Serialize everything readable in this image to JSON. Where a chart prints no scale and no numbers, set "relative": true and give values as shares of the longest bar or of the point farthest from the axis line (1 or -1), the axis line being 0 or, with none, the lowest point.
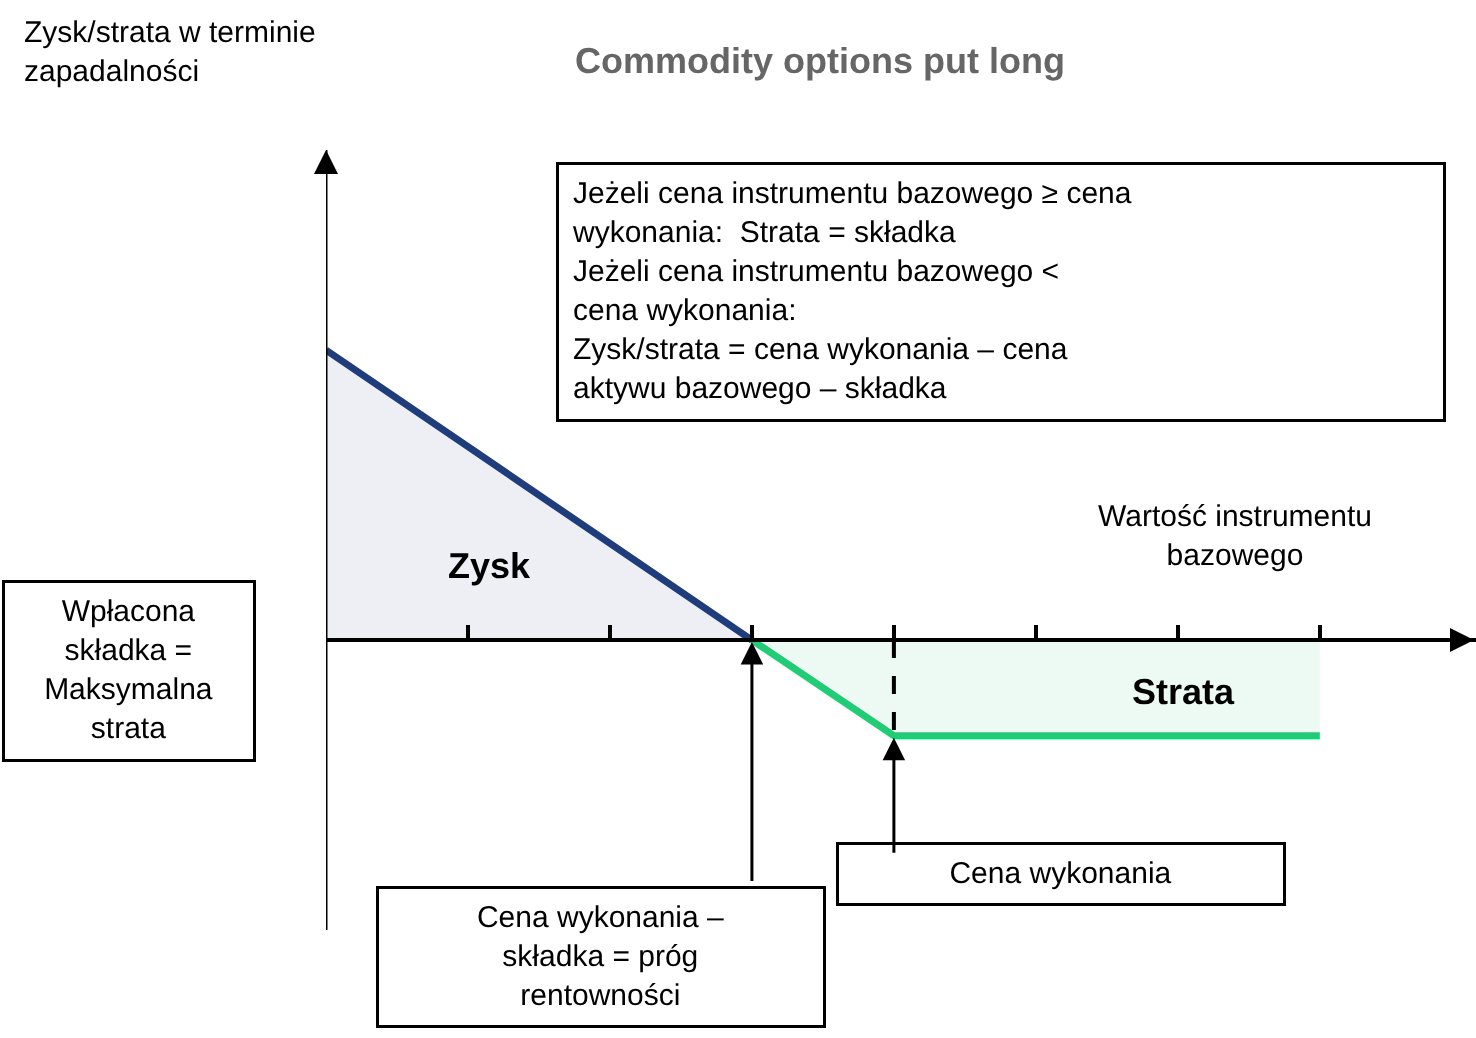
{
  "chart_data": {
    "type": "area",
    "relative": true,
    "title": "Commodity options put long",
    "xlabel": "Wartość instrumentu bazowego",
    "categories": [
      null,
      null,
      null,
      null,
      null,
      null,
      null,
      null
    ],
    "series": [
      {
        "color": "#1f3d7a",
        "values": [
          1,
          0.667,
          0.333,
          0,
          null,
          null,
          null,
          null
        ]
      },
      {
        "color": "#22cc77",
        "values": [
          null,
          null,
          null,
          0,
          -0.33,
          -0.33,
          -0.33,
          -0.33
        ]
      }
    ],
    "annotations": [
      "Jeżeli cena instrumentu bazowego ≥ cena\nwykonania:  Strata = składka\nJeżeli cena instrumentu bazowego <\ncena wykonania:\nZysk/strata = cena wykonania – cena\naktywu bazowego – składka",
      "Zysk",
      "Strata",
      "Wpłacona\nskładka =\nMaksymalna\nstrata",
      "Cena wykonania –\nskładka = próg\nrentowności",
      "Cena wykonania",
      "Zysk/strata w terminie\nzapadalności"
    ]
  }
}
